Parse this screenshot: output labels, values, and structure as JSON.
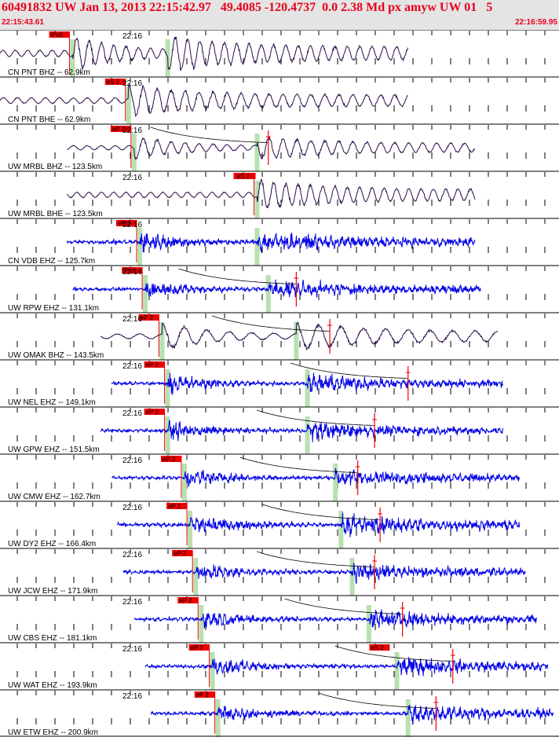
{
  "header": {
    "title": "60491832 UW Jan 13, 2013 22:15:42.97   49.4085 -120.4737  0.0 2.38 Md px amyw UW 01   5",
    "start_time": "22:15:43.61",
    "end_time": "22:16:59.95"
  },
  "colors": {
    "header_bg": "#e4e4e4",
    "header_text": "#e8001c",
    "trace_broadband": "#2b0f4a",
    "trace_shortperiod": "#0000e6",
    "pick_box": "#ee0000",
    "pick_window": "#b8e0b0",
    "grid": "#000000"
  },
  "chart_data": {
    "type": "line",
    "title": "60491832 UW Jan 13, 2013 22:15:42.97   49.4085 -120.4737  0.0 2.38 Md px amyw UW 01   5",
    "x_range": [
      "22:15:43.61",
      "22:16:59.95"
    ],
    "time_tick_label": "22:16",
    "series": [
      {
        "name": "CN PNT BHZ -- 62.9km",
        "component": "BHZ",
        "kind": "broadband",
        "distance_km": 62.9,
        "p_pick": "iPc0",
        "start": 0.0,
        "p_frac": 0.13,
        "s_frac": 0.3,
        "end": 0.73,
        "amp": 0.45,
        "period": 0.022,
        "coda_frac": null
      },
      {
        "name": "CN PNT BHE -- 62.9km",
        "component": "BHE",
        "kind": "broadband",
        "distance_km": 62.9,
        "p_pick": "eS 2",
        "start": 0.0,
        "p_frac": 0.23,
        "s_frac": 0.23,
        "end": 0.73,
        "amp": 0.4,
        "period": 0.025,
        "coda_frac": null
      },
      {
        "name": "UW MRBL BHZ -- 123.5km",
        "component": "BHZ",
        "kind": "broadband",
        "distance_km": 123.5,
        "p_pick": "eP 2",
        "start": 0.12,
        "p_frac": 0.24,
        "s_frac": 0.46,
        "end": 0.85,
        "amp": 0.3,
        "period": 0.025,
        "coda_frac": 0.48
      },
      {
        "name": "UW MRBL BHE -- 123.5km",
        "component": "BHE",
        "kind": "broadband",
        "distance_km": 123.5,
        "p_pick": "eS 2",
        "start": 0.12,
        "p_frac": 0.46,
        "s_frac": 0.46,
        "end": 0.85,
        "amp": 0.38,
        "period": 0.022,
        "coda_frac": null
      },
      {
        "name": "CN VDB EHZ -- 125.7km",
        "component": "EHZ",
        "kind": "shortperiod",
        "distance_km": 125.7,
        "p_pick": "eP 2",
        "start": 0.12,
        "p_frac": 0.25,
        "s_frac": 0.46,
        "end": 0.85,
        "amp": 0.4,
        "period": 0.01,
        "coda_frac": null
      },
      {
        "name": "UW RPW EHZ -- 131.1km",
        "component": "EHZ",
        "kind": "shortperiod",
        "distance_km": 131.1,
        "p_pick": "iPc1",
        "start": 0.13,
        "p_frac": 0.26,
        "s_frac": 0.48,
        "end": 0.86,
        "amp": 0.35,
        "period": 0.01,
        "coda_frac": 0.53
      },
      {
        "name": "UW OMAK BHZ -- 143.5km",
        "component": "BHZ",
        "kind": "broadband",
        "distance_km": 143.5,
        "p_pick": "eP 2",
        "start": 0.18,
        "p_frac": 0.29,
        "s_frac": 0.53,
        "end": 0.89,
        "amp": 0.35,
        "period": 0.04,
        "coda_frac": 0.59
      },
      {
        "name": "UW NEL EHZ -- 149.1km",
        "component": "EHZ",
        "kind": "shortperiod",
        "distance_km": 149.1,
        "p_pick": "eP 2",
        "start": 0.2,
        "p_frac": 0.3,
        "s_frac": 0.55,
        "end": 0.9,
        "amp": 0.35,
        "period": 0.01,
        "coda_frac": 0.73
      },
      {
        "name": "UW GPW EHZ -- 151.5km",
        "component": "EHZ",
        "kind": "shortperiod",
        "distance_km": 151.5,
        "p_pick": "eP 2",
        "start": 0.18,
        "p_frac": 0.3,
        "s_frac": 0.55,
        "end": 0.9,
        "amp": 0.35,
        "period": 0.01,
        "coda_frac": 0.67
      },
      {
        "name": "UW CMW EHZ -- 162.7km",
        "component": "EHZ",
        "kind": "shortperiod",
        "distance_km": 162.7,
        "p_pick": "eP 2",
        "start": 0.2,
        "p_frac": 0.33,
        "s_frac": 0.6,
        "end": 0.93,
        "amp": 0.35,
        "period": 0.01,
        "coda_frac": 0.64
      },
      {
        "name": "UW DY2 EHZ -- 166.4km",
        "component": "EHZ",
        "kind": "shortperiod",
        "distance_km": 166.4,
        "p_pick": "eP 2",
        "start": 0.21,
        "p_frac": 0.34,
        "s_frac": 0.61,
        "end": 0.93,
        "amp": 0.4,
        "period": 0.01,
        "coda_frac": 0.68
      },
      {
        "name": "UW JCW EHZ -- 171.9km",
        "component": "EHZ",
        "kind": "shortperiod",
        "distance_km": 171.9,
        "p_pick": "eP 2",
        "start": 0.22,
        "p_frac": 0.35,
        "s_frac": 0.63,
        "end": 0.94,
        "amp": 0.35,
        "period": 0.01,
        "coda_frac": 0.67
      },
      {
        "name": "UW CBS EHZ -- 181.1km",
        "component": "EHZ",
        "kind": "shortperiod",
        "distance_km": 181.1,
        "p_pick": "eP 2",
        "start": 0.24,
        "p_frac": 0.36,
        "s_frac": 0.66,
        "end": 0.96,
        "amp": 0.35,
        "period": 0.01,
        "coda_frac": 0.72
      },
      {
        "name": "UW WAT EHZ -- 193.9km",
        "component": "EHZ",
        "kind": "shortperiod",
        "distance_km": 193.9,
        "p_pick": "eP 2",
        "start": 0.26,
        "p_frac": 0.38,
        "s_frac": 0.71,
        "end": 0.98,
        "amp": 0.35,
        "period": 0.01,
        "coda_frac": 0.81
      },
      {
        "name": "UW ETW EHZ -- 200.9km",
        "component": "EHZ",
        "kind": "shortperiod",
        "distance_km": 200.9,
        "p_pick": "eP 2",
        "start": 0.27,
        "p_frac": 0.39,
        "s_frac": 0.73,
        "end": 0.99,
        "amp": 0.35,
        "period": 0.01,
        "coda_frac": 0.78
      }
    ],
    "secondary_picks": [
      {
        "trace": 3,
        "frac": 0.46,
        "label": "eS 2"
      },
      {
        "trace": 13,
        "frac": 0.7,
        "label": "eS 2"
      }
    ]
  }
}
